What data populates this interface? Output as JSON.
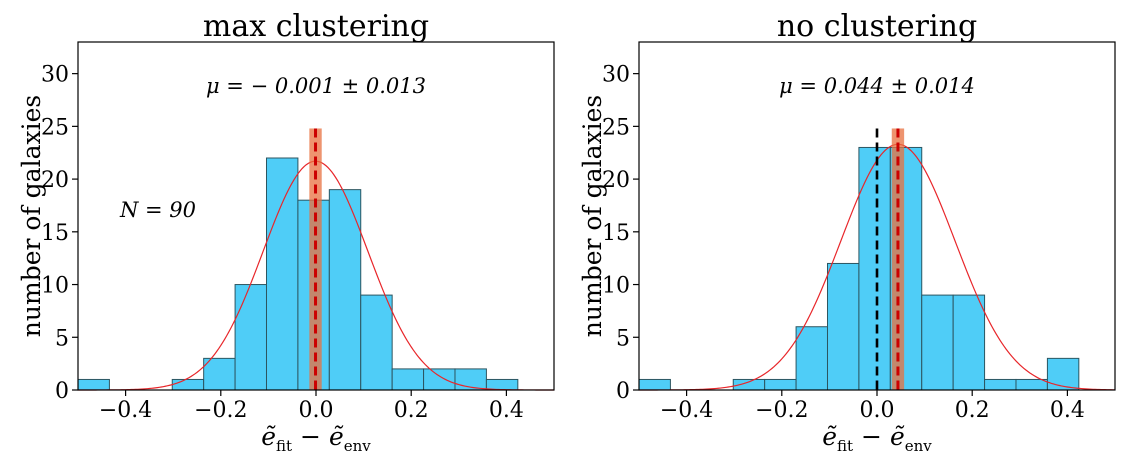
{
  "chart_data": [
    {
      "type": "histogram",
      "title": "max clustering",
      "xlabel": "ẽ_fit − ẽ_env",
      "ylabel": "number of galaxies",
      "xlim": [
        -0.5,
        0.5
      ],
      "ylim": [
        0,
        33
      ],
      "xticks": [
        -0.4,
        -0.2,
        0.0,
        0.2,
        0.4
      ],
      "xtick_labels": [
        "−0.4",
        "−0.2",
        "0.0",
        "0.2",
        "0.4"
      ],
      "yticks": [
        0,
        5,
        10,
        15,
        20,
        25,
        30
      ],
      "ytick_labels": [
        "0",
        "5",
        "10",
        "15",
        "20",
        "25",
        "30"
      ],
      "bins": [
        {
          "left": -0.5,
          "right": -0.434,
          "count": 1
        },
        {
          "left": -0.302,
          "right": -0.236,
          "count": 1
        },
        {
          "left": -0.236,
          "right": -0.17,
          "count": 3
        },
        {
          "left": -0.17,
          "right": -0.104,
          "count": 10
        },
        {
          "left": -0.104,
          "right": -0.038,
          "count": 22
        },
        {
          "left": -0.038,
          "right": 0.028,
          "count": 18
        },
        {
          "left": 0.028,
          "right": 0.094,
          "count": 19
        },
        {
          "left": 0.094,
          "right": 0.16,
          "count": 9
        },
        {
          "left": 0.16,
          "right": 0.226,
          "count": 2
        },
        {
          "left": 0.226,
          "right": 0.292,
          "count": 2
        },
        {
          "left": 0.292,
          "right": 0.358,
          "count": 2
        },
        {
          "left": 0.358,
          "right": 0.424,
          "count": 1
        }
      ],
      "gaussian_fit": {
        "mu": -0.001,
        "sigma": 0.11,
        "amplitude": 21.7
      },
      "mean_line": {
        "x": -0.001,
        "color": "#cc0000",
        "style": "dashed"
      },
      "mean_error_band": {
        "low": -0.014,
        "high": 0.012,
        "color": "#e8703f"
      },
      "annotation_mu": "μ = − 0.001 ± 0.013",
      "annotation_n": "N = 90",
      "colors": {
        "bar": "#4fcdf7",
        "edge": "#2c5560",
        "curve": "#e8262a"
      }
    },
    {
      "type": "histogram",
      "title": "no clustering",
      "xlabel": "ẽ_fit − ẽ_env",
      "ylabel": "number of galaxies",
      "xlim": [
        -0.5,
        0.5
      ],
      "ylim": [
        0,
        33
      ],
      "xticks": [
        -0.4,
        -0.2,
        0.0,
        0.2,
        0.4
      ],
      "xtick_labels": [
        "−0.4",
        "−0.2",
        "0.0",
        "0.2",
        "0.4"
      ],
      "yticks": [
        0,
        5,
        10,
        15,
        20,
        25,
        30
      ],
      "ytick_labels": [
        "0",
        "5",
        "10",
        "15",
        "20",
        "25",
        "30"
      ],
      "bins": [
        {
          "left": -0.5,
          "right": -0.434,
          "count": 1
        },
        {
          "left": -0.302,
          "right": -0.236,
          "count": 1
        },
        {
          "left": -0.236,
          "right": -0.17,
          "count": 1
        },
        {
          "left": -0.17,
          "right": -0.104,
          "count": 6
        },
        {
          "left": -0.104,
          "right": -0.038,
          "count": 12
        },
        {
          "left": -0.038,
          "right": 0.028,
          "count": 23
        },
        {
          "left": 0.028,
          "right": 0.094,
          "count": 23
        },
        {
          "left": 0.094,
          "right": 0.16,
          "count": 9
        },
        {
          "left": 0.16,
          "right": 0.226,
          "count": 9
        },
        {
          "left": 0.226,
          "right": 0.292,
          "count": 1
        },
        {
          "left": 0.292,
          "right": 0.358,
          "count": 1
        },
        {
          "left": 0.358,
          "right": 0.424,
          "count": 3
        }
      ],
      "gaussian_fit": {
        "mu": 0.044,
        "sigma": 0.12,
        "amplitude": 23.3
      },
      "mean_line": {
        "x": 0.044,
        "color": "#cc0000",
        "style": "dashed"
      },
      "zero_line": {
        "x": 0.0,
        "color": "#000000",
        "style": "dashed"
      },
      "mean_error_band": {
        "low": 0.031,
        "high": 0.057,
        "color": "#e8703f"
      },
      "annotation_mu": "μ = 0.044 ± 0.014",
      "colors": {
        "bar": "#4fcdf7",
        "edge": "#2c5560",
        "curve": "#e8262a"
      }
    }
  ]
}
